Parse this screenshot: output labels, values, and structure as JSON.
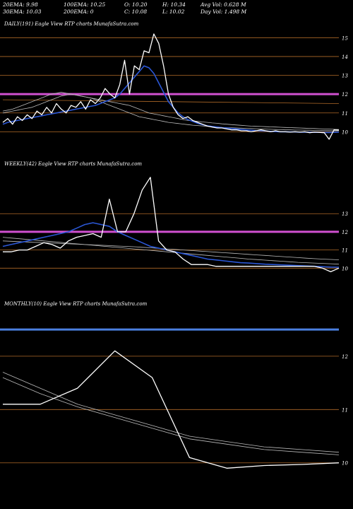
{
  "header": {
    "row1": [
      "20EMA: 9.98",
      "100EMA: 10.25",
      "O: 10.20",
      "H: 10.34",
      "Avg Vol: 0.628  M"
    ],
    "row2": [
      "30EMA: 10.03",
      "200EMA: 0",
      "C: 10.08",
      "L: 10.02",
      "Day Vol: 1.498  M"
    ]
  },
  "colors": {
    "background": "#000000",
    "price": "#ffffff",
    "ema_blue": "#2b57d6",
    "resistance": "#d050d0",
    "level_lines": "#b06a28",
    "ema_gray": "#bbbbbb",
    "monthly_blue": "#4a7fe0"
  },
  "chart_data": [
    {
      "type": "line",
      "title": "DAILY(191) Eagle  View  RTP charts MunafaSutra.com",
      "y_ticks": [
        "15",
        "14",
        "13",
        "12",
        "11",
        "10"
      ],
      "ylim": [
        9.3,
        15.5
      ],
      "level_lines": [
        15,
        14,
        13,
        11,
        10
      ],
      "resistance": 12,
      "series": [
        {
          "role": "price",
          "values": [
            10.5,
            10.7,
            10.4,
            10.8,
            10.6,
            10.9,
            10.7,
            11.1,
            10.9,
            11.3,
            11.0,
            11.5,
            11.2,
            11.0,
            11.4,
            11.3,
            11.6,
            11.2,
            11.7,
            11.5,
            11.8,
            12.3,
            12.0,
            11.8,
            12.5,
            13.8,
            12.0,
            13.5,
            13.3,
            14.3,
            14.2,
            15.2,
            14.7,
            13.5,
            12.0,
            11.3,
            10.9,
            10.7,
            10.8,
            10.6,
            10.5,
            10.4,
            10.3,
            10.25,
            10.2,
            10.2,
            10.15,
            10.1,
            10.1,
            10.05,
            10.05,
            10.0,
            10.05,
            10.1,
            10.05,
            10.0,
            10.05,
            10.0,
            10.0,
            9.98,
            10.0,
            9.98,
            10.0,
            9.95,
            9.98,
            9.97,
            9.95,
            9.6,
            10.1,
            10.08
          ]
        },
        {
          "role": "ema-blue",
          "values": [
            10.4,
            10.5,
            10.55,
            10.6,
            10.65,
            10.7,
            10.75,
            10.8,
            10.85,
            10.9,
            10.95,
            11.0,
            11.05,
            11.1,
            11.15,
            11.2,
            11.25,
            11.3,
            11.35,
            11.4,
            11.5,
            11.6,
            11.7,
            11.8,
            12.0,
            12.3,
            12.6,
            12.9,
            13.2,
            13.5,
            13.4,
            13.1,
            12.6,
            12.1,
            11.6,
            11.3,
            11.0,
            10.8,
            10.65,
            10.55,
            10.45,
            10.38,
            10.32,
            10.28,
            10.25,
            10.22,
            10.2,
            10.17,
            10.15,
            10.12,
            10.1,
            10.08,
            10.06,
            10.05,
            10.04,
            10.02,
            10.01,
            10.0,
            10.0,
            9.99,
            9.99,
            9.98,
            9.98,
            9.98,
            9.97,
            9.97,
            9.96,
            9.96,
            9.97,
            9.98
          ]
        },
        {
          "role": "ema-gray",
          "values": [
            11.0,
            11.05,
            11.1,
            11.15,
            11.2,
            11.25,
            11.3,
            11.4,
            11.5,
            11.6,
            11.7,
            11.8,
            11.9,
            11.95,
            12.0,
            11.95,
            11.9,
            11.85,
            11.8,
            11.75,
            11.7,
            11.65,
            11.6,
            11.55,
            11.5,
            11.45,
            11.4,
            11.3,
            11.2,
            11.1,
            11.0,
            10.95,
            10.9,
            10.85,
            10.8,
            10.75,
            10.7,
            10.65,
            10.6,
            10.58,
            10.55,
            10.52,
            10.5,
            10.47,
            10.45,
            10.42,
            10.4,
            10.38,
            10.36,
            10.34,
            10.32,
            10.3,
            10.29,
            10.28,
            10.27,
            10.26,
            10.25,
            10.24,
            10.23,
            10.22,
            10.21,
            10.2,
            10.19,
            10.18,
            10.17,
            10.16,
            10.15,
            10.14,
            10.13,
            10.12
          ]
        },
        {
          "role": "ema-gray2",
          "values": [
            11.1,
            11.15,
            11.2,
            11.3,
            11.4,
            11.5,
            11.6,
            11.7,
            11.8,
            11.9,
            12.0,
            12.05,
            12.1,
            12.05,
            12.0,
            11.95,
            11.9,
            11.85,
            11.8,
            11.7,
            11.6,
            11.5,
            11.4,
            11.3,
            11.2,
            11.1,
            11.0,
            10.9,
            10.8,
            10.75,
            10.7,
            10.65,
            10.6,
            10.55,
            10.5,
            10.47,
            10.44,
            10.41,
            10.38,
            10.35,
            10.33,
            10.31,
            10.29,
            10.27,
            10.25,
            10.23,
            10.22,
            10.21,
            10.2,
            10.19,
            10.18,
            10.17,
            10.16,
            10.15,
            10.14,
            10.13,
            10.12,
            10.11,
            10.1,
            10.1,
            10.09,
            10.09,
            10.08,
            10.08,
            10.07,
            10.07,
            10.06,
            10.06,
            10.05,
            10.05
          ]
        },
        {
          "role": "trend",
          "values": [
            11.7,
            11.5
          ]
        }
      ]
    },
    {
      "type": "line",
      "title": "WEEKLY(42) Eagle  View  RTP charts MunafaSutra.com",
      "y_ticks": [
        "13",
        "12",
        "11",
        "10"
      ],
      "ylim": [
        9.0,
        15.5
      ],
      "level_lines": [
        13,
        11,
        10
      ],
      "resistance": 12,
      "series": [
        {
          "role": "price",
          "values": [
            10.9,
            10.9,
            11.0,
            11.0,
            11.2,
            11.4,
            11.3,
            11.1,
            11.5,
            11.7,
            11.8,
            11.9,
            11.7,
            13.8,
            12.0,
            12.0,
            13.0,
            14.3,
            15.0,
            11.5,
            11.0,
            10.9,
            10.5,
            10.2,
            10.2,
            10.2,
            10.1,
            10.1,
            10.1,
            10.1,
            10.1,
            10.1,
            10.1,
            10.1,
            10.1,
            10.1,
            10.1,
            10.1,
            10.1,
            10.0,
            9.8,
            10.0
          ]
        },
        {
          "role": "ema-blue",
          "values": [
            11.2,
            11.3,
            11.4,
            11.5,
            11.6,
            11.7,
            11.8,
            11.9,
            12.0,
            12.2,
            12.4,
            12.5,
            12.4,
            12.3,
            12.0,
            11.8,
            11.6,
            11.4,
            11.2,
            11.1,
            11.0,
            10.9,
            10.8,
            10.7,
            10.6,
            10.5,
            10.45,
            10.4,
            10.35,
            10.3,
            10.28,
            10.25,
            10.22,
            10.2,
            10.18,
            10.16,
            10.14,
            10.12,
            10.1,
            10.08,
            10.06,
            10.05
          ]
        },
        {
          "role": "ema-gray",
          "values": [
            11.5,
            11.48,
            11.46,
            11.44,
            11.42,
            11.4,
            11.38,
            11.36,
            11.34,
            11.32,
            11.3,
            11.28,
            11.26,
            11.24,
            11.22,
            11.2,
            11.18,
            11.15,
            11.12,
            11.09,
            11.06,
            11.03,
            11.0,
            10.97,
            10.94,
            10.91,
            10.88,
            10.85,
            10.82,
            10.79,
            10.76,
            10.73,
            10.7,
            10.67,
            10.64,
            10.61,
            10.58,
            10.55,
            10.52,
            10.5,
            10.48,
            10.46
          ]
        },
        {
          "role": "ema-gray2",
          "values": [
            11.7,
            11.66,
            11.62,
            11.58,
            11.54,
            11.5,
            11.46,
            11.42,
            11.38,
            11.34,
            11.3,
            11.26,
            11.22,
            11.18,
            11.14,
            11.1,
            11.06,
            11.02,
            10.98,
            10.94,
            10.9,
            10.86,
            10.82,
            10.78,
            10.74,
            10.7,
            10.66,
            10.62,
            10.58,
            10.54,
            10.5,
            10.47,
            10.44,
            10.41,
            10.38,
            10.35,
            10.32,
            10.3,
            10.28,
            10.26,
            10.24,
            10.22
          ]
        }
      ]
    },
    {
      "type": "line",
      "title": "MONTHLY(10) Eagle  View  RTP charts MunafaSutra.com",
      "y_ticks": [
        "12",
        "11",
        "10"
      ],
      "ylim": [
        9.4,
        12.9
      ],
      "level_lines": [
        12,
        11,
        10
      ],
      "resistance": 12.5,
      "series": [
        {
          "role": "price",
          "values": [
            11.1,
            11.1,
            11.4,
            12.1,
            11.6,
            10.1,
            9.9,
            9.95,
            9.97,
            10.0
          ]
        },
        {
          "role": "ema-gray",
          "values": [
            11.7,
            11.4,
            11.1,
            10.9,
            10.7,
            10.5,
            10.4,
            10.3,
            10.25,
            10.2
          ]
        },
        {
          "role": "ema-gray2",
          "values": [
            11.6,
            11.3,
            11.05,
            10.85,
            10.65,
            10.45,
            10.35,
            10.25,
            10.2,
            10.15
          ]
        }
      ]
    }
  ]
}
